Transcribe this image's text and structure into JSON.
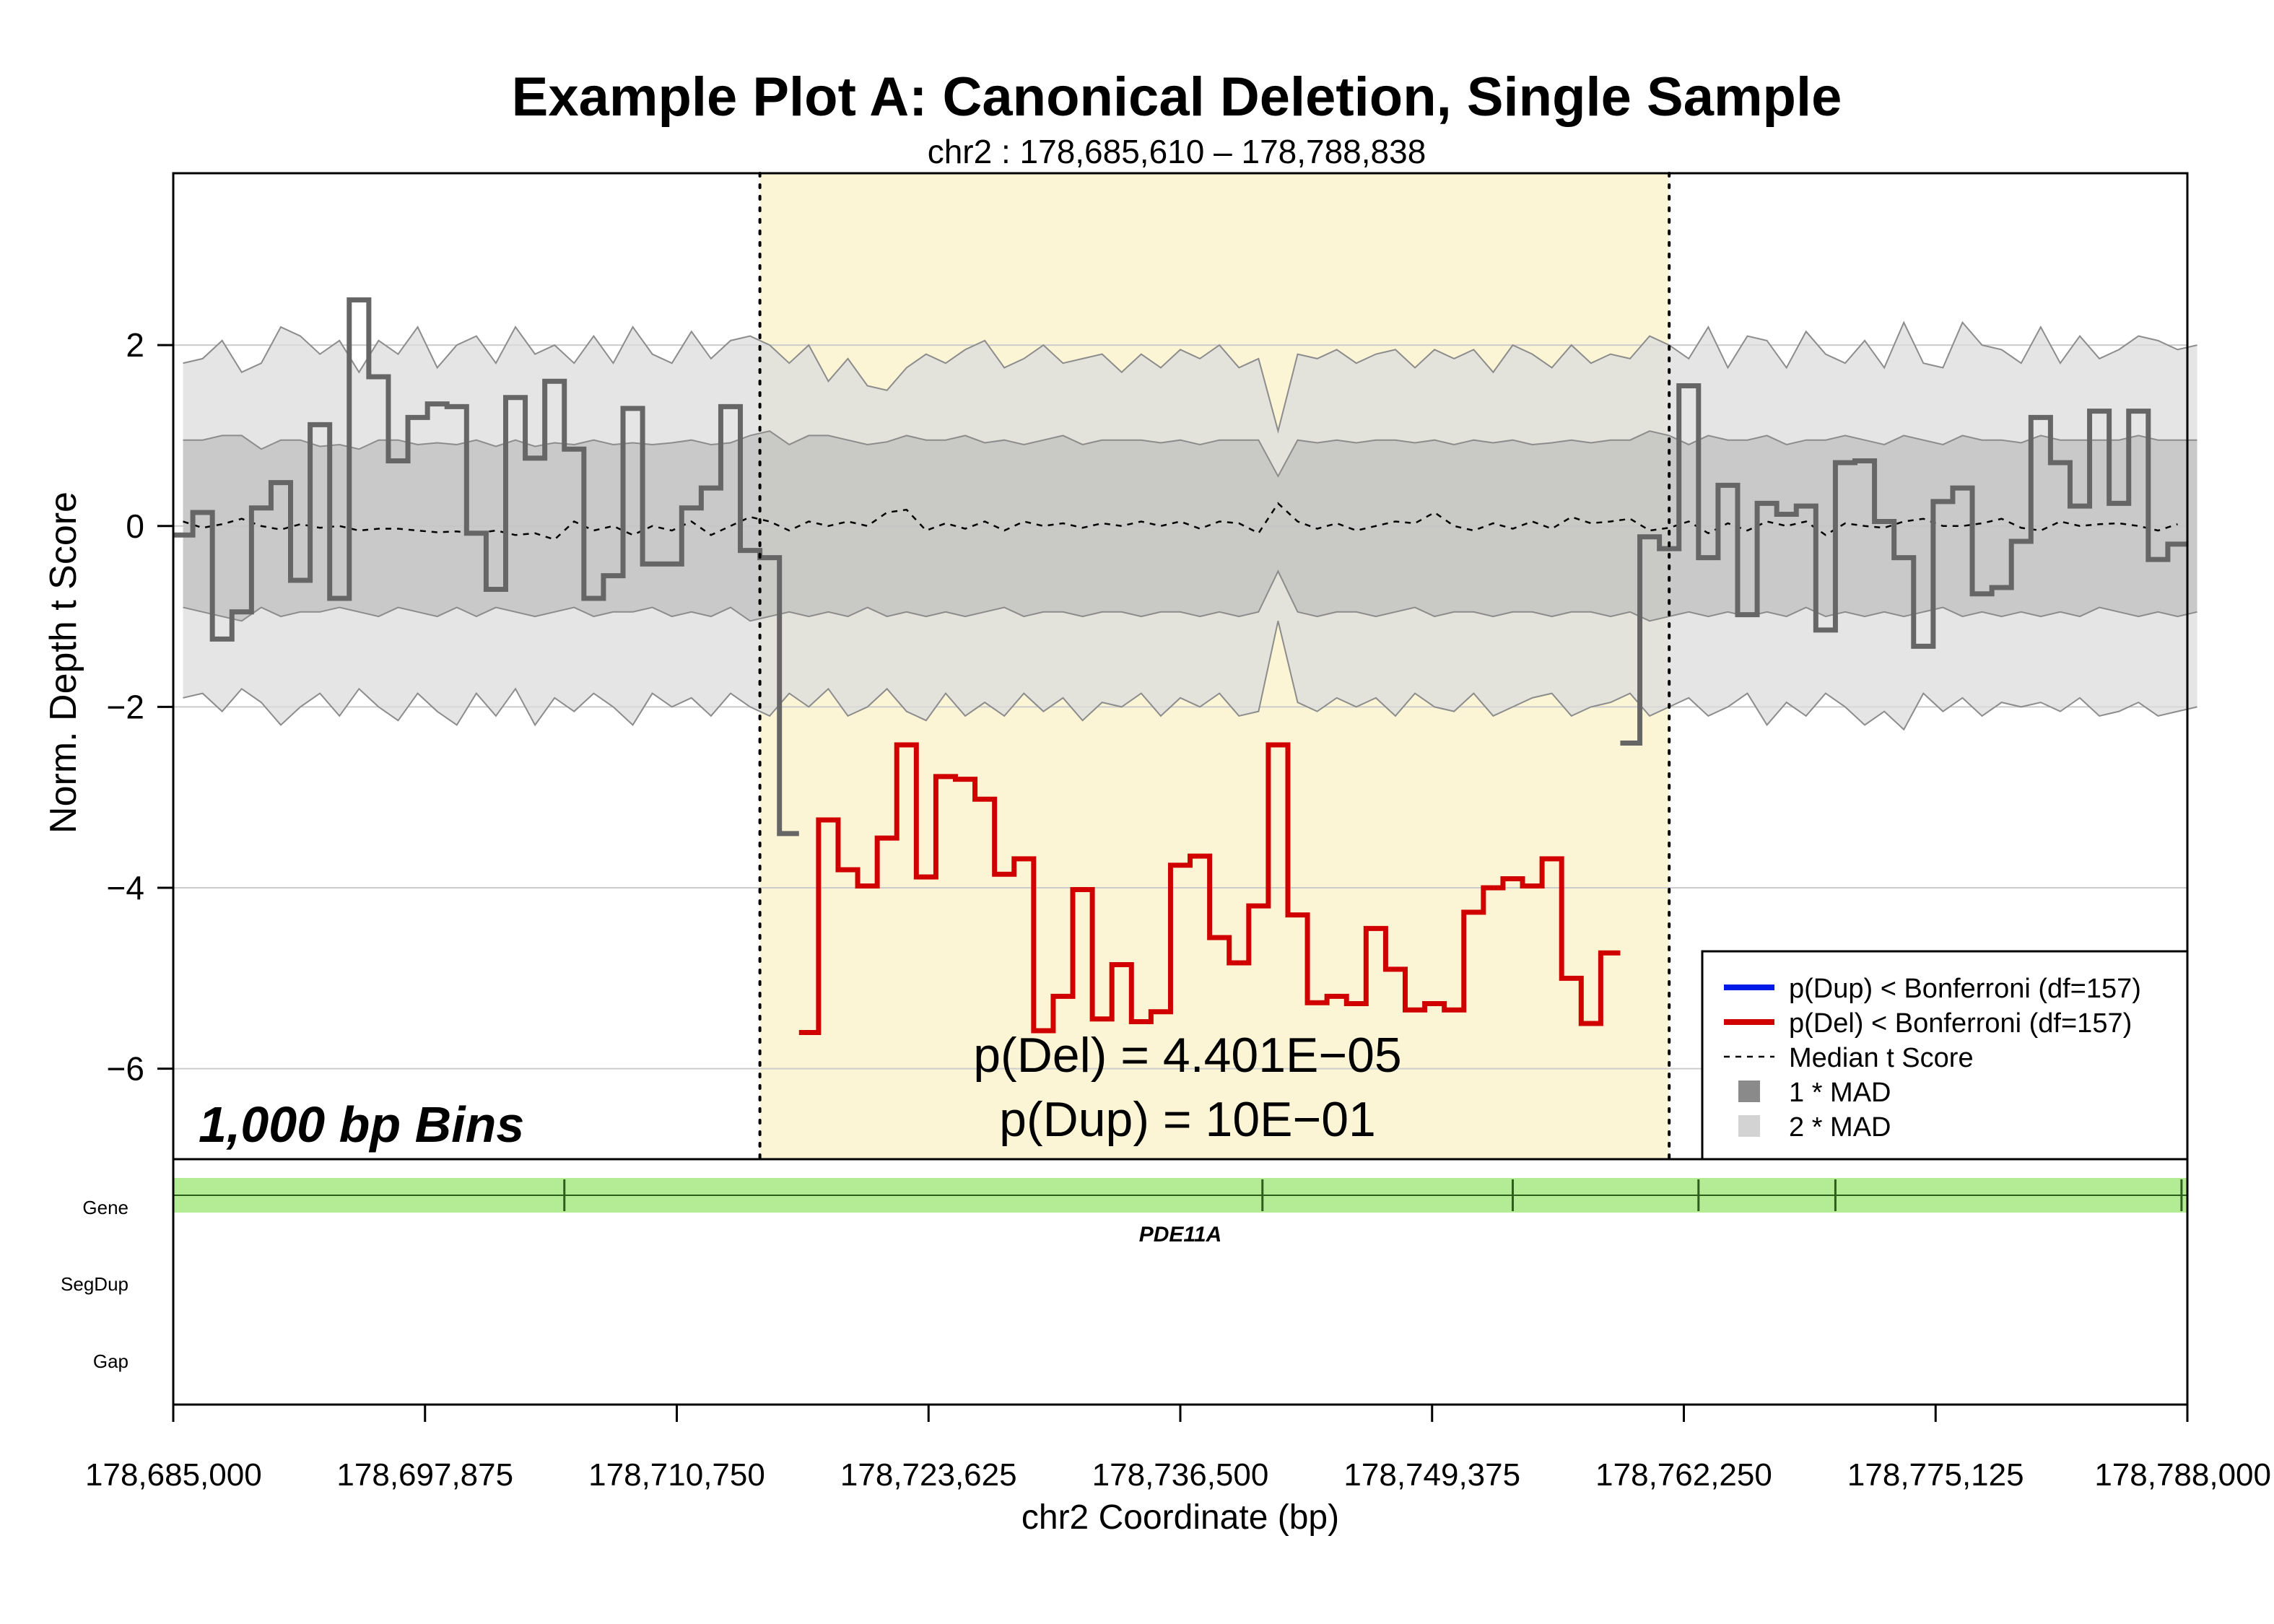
{
  "title": "Example Plot A: Canonical Deletion, Single Sample",
  "subtitle": "chr2 : 178,685,610 – 178,788,838",
  "bins_label": "1,000 bp Bins",
  "pvalues": {
    "del": "p(Del) = 4.401E−05",
    "dup": "p(Dup) = 10E−01"
  },
  "colors": {
    "highlight": "#fbf5d6",
    "mad1": "#bdbdbd",
    "mad2": "#dcdcdc",
    "normal_line": "#666666",
    "del_line": "#d10000",
    "dup_line": "#0019e6",
    "gene": "#b4ec96"
  },
  "legend": [
    {
      "label": "p(Dup) < Bonferroni (df=157)",
      "symbol": "blue-line"
    },
    {
      "label": "p(Del) < Bonferroni (df=157)",
      "symbol": "red-line"
    },
    {
      "label": "Median t Score",
      "symbol": "dashed-line"
    },
    {
      "label": "1 * MAD",
      "symbol": "dark-square"
    },
    {
      "label": "2 * MAD",
      "symbol": "light-square"
    }
  ],
  "tracks": {
    "labels": [
      "Gene",
      "SegDup",
      "Gap"
    ],
    "gene": {
      "name": "PDE11A",
      "start": 178685000,
      "end": 178788000,
      "exons": [
        178705000,
        178740700,
        178753500,
        178763000,
        178770000,
        178787700
      ]
    }
  },
  "chart_data": {
    "type": "line",
    "xlabel": "chr2 Coordinate (bp)",
    "ylabel": "Norm. Depth t Score",
    "xlim": [
      178685000,
      178788000
    ],
    "ylim": [
      -7,
      3.9
    ],
    "xticks": [
      178685000,
      178697875,
      178710750,
      178723625,
      178736500,
      178749375,
      178762250,
      178775125,
      178788000
    ],
    "xtick_labels": [
      "178,685,000",
      "178,697,875",
      "178,710,750",
      "178,723,625",
      "178,736,500",
      "178,749,375",
      "178,762,250",
      "178,775,125",
      "178,788,000"
    ],
    "yticks": [
      -6,
      -4,
      -2,
      0,
      2
    ],
    "ytick_labels": [
      "−6",
      "−4",
      "−2",
      "0",
      "2"
    ],
    "grid": "horizontal",
    "legend_position": "bottom-right",
    "highlight_region": [
      178715000,
      178761500
    ],
    "bin_edges_start": 178685000,
    "bin_width": 1000,
    "series": [
      {
        "name": "Sample t score",
        "values": [
          -0.1,
          0.15,
          -1.25,
          -0.95,
          0.2,
          0.48,
          -0.6,
          1.12,
          -0.8,
          2.5,
          1.65,
          0.72,
          1.2,
          1.35,
          1.32,
          -0.08,
          -0.7,
          1.42,
          0.75,
          1.6,
          0.85,
          -0.8,
          -0.55,
          1.3,
          -0.42,
          -0.42,
          0.2,
          0.42,
          1.32,
          -0.27,
          -0.35,
          -3.4,
          -5.6,
          -3.25,
          -3.8,
          -3.98,
          -3.45,
          -2.42,
          -3.88,
          -2.77,
          -2.8,
          -3.02,
          -3.85,
          -3.68,
          -5.58,
          -5.2,
          -4.02,
          -5.45,
          -4.85,
          -5.48,
          -5.37,
          -3.75,
          -3.65,
          -4.55,
          -4.83,
          -4.2,
          -2.42,
          -4.3,
          -5.27,
          -5.2,
          -5.28,
          -4.45,
          -4.9,
          -5.35,
          -5.28,
          -5.35,
          -4.27,
          -4.0,
          -3.9,
          -3.98,
          -3.68,
          -5.0,
          -5.5,
          -4.72,
          -2.4,
          -0.12,
          -0.25,
          1.55,
          -0.35,
          0.45,
          -0.98,
          0.25,
          0.13,
          0.22,
          -1.15,
          0.7,
          0.72,
          0.05,
          -0.35,
          -1.33,
          0.27,
          0.42,
          -0.75,
          -0.68,
          -0.17,
          1.2,
          0.7,
          0.22,
          1.27,
          0.25,
          1.27,
          -0.37,
          -0.2
        ]
      },
      {
        "name": "Median t Score",
        "values": [
          0.05,
          -0.02,
          0.02,
          0.08,
          0.0,
          -0.04,
          0.02,
          -0.02,
          0.0,
          -0.05,
          -0.03,
          -0.03,
          -0.05,
          -0.07,
          -0.06,
          -0.08,
          -0.05,
          -0.1,
          -0.08,
          -0.15,
          0.05,
          -0.05,
          0.0,
          -0.1,
          0.0,
          -0.05,
          0.05,
          -0.1,
          0.0,
          0.1,
          0.05,
          -0.05,
          0.05,
          0.0,
          0.05,
          0.0,
          0.15,
          0.18,
          -0.05,
          0.03,
          -0.03,
          0.05,
          -0.05,
          0.05,
          0.0,
          0.03,
          -0.02,
          0.03,
          0.0,
          0.05,
          0.0,
          0.05,
          -0.03,
          0.05,
          0.03,
          -0.08,
          0.25,
          0.05,
          -0.03,
          0.03,
          -0.05,
          0.0,
          0.05,
          0.03,
          0.15,
          0.0,
          -0.05,
          0.03,
          -0.03,
          0.05,
          -0.03,
          0.1,
          0.03,
          0.05,
          0.08,
          -0.05,
          -0.02,
          0.05,
          -0.08,
          0.03,
          -0.05,
          0.05,
          0.0,
          0.05,
          -0.1,
          0.03,
          0.0,
          -0.02,
          0.05,
          0.08,
          0.0,
          0.0,
          0.03,
          0.08,
          -0.02,
          -0.05,
          0.05,
          0.0,
          0.02,
          0.03,
          0.0,
          -0.05,
          0.02
        ]
      }
    ],
    "mad_band": {
      "mad1_upper": [
        0.95,
        0.95,
        1.0,
        1.0,
        0.85,
        0.95,
        0.95,
        0.88,
        0.9,
        0.85,
        0.95,
        0.95,
        0.9,
        0.92,
        0.9,
        0.95,
        0.88,
        0.95,
        0.88,
        0.92,
        0.9,
        0.95,
        0.9,
        0.92,
        0.9,
        0.92,
        0.95,
        0.9,
        0.92,
        1.0,
        1.05,
        0.9,
        1.0,
        1.0,
        0.95,
        0.9,
        0.93,
        1.0,
        0.95,
        0.95,
        1.0,
        0.92,
        0.95,
        0.9,
        0.95,
        1.0,
        0.9,
        0.95,
        0.95,
        0.95,
        0.92,
        0.95,
        0.9,
        0.95,
        0.95,
        0.95,
        0.55,
        0.95,
        0.92,
        0.95,
        0.92,
        0.95,
        0.95,
        0.92,
        0.95,
        0.9,
        0.95,
        0.92,
        0.95,
        0.9,
        0.92,
        0.95,
        0.92,
        0.95,
        0.95,
        1.05,
        1.0,
        0.9,
        1.0,
        0.95,
        0.95,
        1.0,
        0.9,
        0.95,
        0.95,
        1.0,
        0.95,
        0.9,
        1.0,
        0.95,
        0.9,
        1.0,
        0.95,
        0.95,
        0.92,
        1.0,
        0.95,
        0.95,
        0.95,
        0.95,
        1.0,
        0.95,
        0.95,
        0.95
      ],
      "mad2_upper": [
        1.8,
        1.85,
        2.05,
        1.7,
        1.8,
        2.2,
        2.1,
        1.9,
        2.05,
        1.7,
        2.05,
        1.9,
        2.2,
        1.75,
        2.0,
        2.1,
        1.8,
        2.2,
        1.9,
        2.0,
        1.8,
        2.1,
        1.8,
        2.2,
        1.9,
        1.8,
        2.15,
        1.85,
        2.05,
        2.1,
        2.0,
        1.8,
        2.0,
        1.6,
        1.85,
        1.55,
        1.5,
        1.75,
        1.9,
        1.8,
        1.95,
        2.05,
        1.75,
        1.85,
        2.0,
        1.8,
        1.85,
        1.9,
        1.7,
        1.9,
        1.75,
        1.95,
        1.85,
        2.0,
        1.75,
        1.85,
        1.05,
        1.9,
        1.85,
        1.95,
        1.8,
        1.9,
        1.95,
        1.75,
        1.95,
        1.85,
        1.95,
        1.7,
        2.0,
        1.9,
        1.75,
        2.0,
        1.8,
        1.9,
        1.85,
        2.1,
        2.0,
        1.85,
        2.2,
        1.75,
        2.1,
        2.05,
        1.75,
        2.15,
        1.9,
        1.8,
        2.05,
        1.75,
        2.25,
        1.8,
        1.75,
        2.25,
        2.0,
        1.95,
        1.8,
        2.2,
        1.8,
        2.1,
        1.85,
        1.95,
        2.1,
        2.05,
        1.95,
        2.0
      ],
      "mad1_lower": [
        -0.9,
        -0.95,
        -1.0,
        -1.05,
        -0.9,
        -1.0,
        -0.95,
        -0.95,
        -0.9,
        -0.95,
        -1.0,
        -0.9,
        -0.95,
        -1.0,
        -0.9,
        -1.0,
        -0.9,
        -0.95,
        -1.0,
        -0.95,
        -0.9,
        -1.0,
        -0.95,
        -0.95,
        -0.9,
        -1.0,
        -0.95,
        -1.0,
        -0.9,
        -1.05,
        -1.0,
        -0.95,
        -1.0,
        -0.95,
        -1.0,
        -0.9,
        -1.0,
        -0.95,
        -1.0,
        -0.95,
        -1.0,
        -0.95,
        -0.9,
        -1.0,
        -0.95,
        -0.95,
        -1.0,
        -0.95,
        -0.95,
        -1.0,
        -0.95,
        -0.95,
        -1.0,
        -0.95,
        -1.0,
        -0.95,
        -0.5,
        -0.95,
        -1.0,
        -0.95,
        -0.95,
        -1.0,
        -0.95,
        -0.9,
        -1.0,
        -0.95,
        -0.95,
        -1.0,
        -0.95,
        -0.95,
        -1.0,
        -0.95,
        -0.95,
        -1.0,
        -0.95,
        -1.05,
        -1.0,
        -0.95,
        -1.0,
        -0.95,
        -1.0,
        -0.95,
        -1.0,
        -0.9,
        -1.0,
        -0.95,
        -1.0,
        -0.95,
        -1.0,
        -0.95,
        -0.9,
        -1.0,
        -0.95,
        -1.0,
        -0.95,
        -1.0,
        -0.95,
        -1.0,
        -0.9,
        -0.95,
        -1.0,
        -0.95,
        -1.0,
        -0.95
      ],
      "mad2_lower": [
        -1.9,
        -1.85,
        -2.05,
        -1.8,
        -1.95,
        -2.2,
        -2.0,
        -1.85,
        -2.1,
        -1.8,
        -2.0,
        -2.15,
        -1.85,
        -2.05,
        -2.2,
        -1.85,
        -2.1,
        -1.8,
        -2.2,
        -1.9,
        -2.05,
        -1.85,
        -2.0,
        -2.2,
        -1.85,
        -2.0,
        -1.9,
        -2.1,
        -1.85,
        -2.0,
        -2.1,
        -1.85,
        -2.0,
        -1.8,
        -2.1,
        -2.0,
        -1.8,
        -2.05,
        -2.15,
        -1.85,
        -2.1,
        -1.95,
        -2.1,
        -1.85,
        -2.05,
        -1.9,
        -2.15,
        -1.95,
        -2.0,
        -1.85,
        -2.1,
        -1.9,
        -2.0,
        -1.85,
        -2.1,
        -2.05,
        -1.05,
        -1.95,
        -2.05,
        -1.9,
        -2.0,
        -1.9,
        -2.1,
        -1.85,
        -2.0,
        -2.05,
        -1.85,
        -2.1,
        -2.0,
        -1.9,
        -1.85,
        -2.1,
        -2.0,
        -1.95,
        -1.85,
        -2.1,
        -2.0,
        -1.9,
        -2.1,
        -2.0,
        -1.85,
        -2.2,
        -1.95,
        -2.1,
        -1.85,
        -2.0,
        -2.2,
        -2.05,
        -2.25,
        -1.85,
        -2.05,
        -1.9,
        -2.1,
        -1.95,
        -2.0,
        -1.95,
        -2.05,
        -1.9,
        -2.1,
        -2.05,
        -1.95,
        -2.1,
        -2.05,
        -2.0
      ]
    }
  }
}
